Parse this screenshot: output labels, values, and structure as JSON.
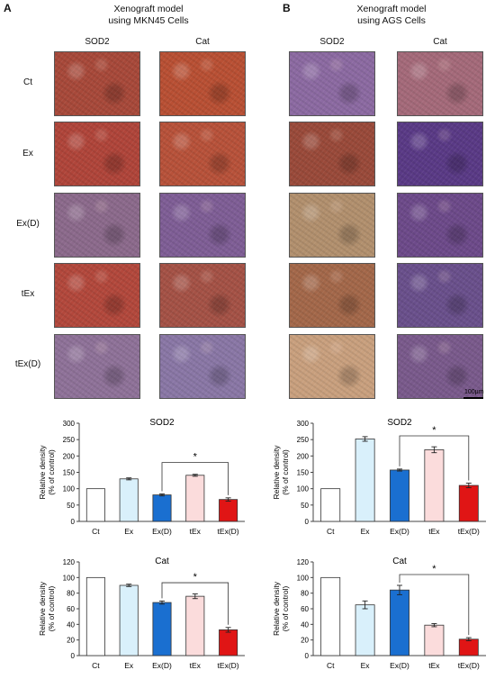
{
  "panels": [
    {
      "letter": "A",
      "title_line1": "Xenograft model",
      "title_line2": "using MKN45 Cells",
      "stain_headers": [
        "SOD2",
        "Cat"
      ],
      "row_labels": [
        "Ct",
        "Ex",
        "Ex(D)",
        "tEx",
        "tEx(D)"
      ],
      "tile_colors": [
        [
          "#a8493a",
          "#b95034"
        ],
        [
          "#b0453a",
          "#b8523a"
        ],
        [
          "#8c6a8c",
          "#7f5e96"
        ],
        [
          "#b3483c",
          "#a55246"
        ],
        [
          "#8f7299",
          "#8a77a6"
        ]
      ]
    },
    {
      "letter": "B",
      "title_line1": "Xenograft model",
      "title_line2": "using AGS Cells",
      "stain_headers": [
        "SOD2",
        "Cat"
      ],
      "row_labels": [],
      "tile_colors": [
        [
          "#8c6aa2",
          "#a56a7a"
        ],
        [
          "#9a4a3a",
          "#5a3a86"
        ],
        [
          "#b2906e",
          "#6d4a8a"
        ],
        [
          "#a4684a",
          "#6a508c"
        ],
        [
          "#c9a07e",
          "#7a5a8c"
        ]
      ],
      "scale_label": "100μm"
    }
  ],
  "chart_data": [
    {
      "type": "bar",
      "title": "SOD2",
      "categories": [
        "Ct",
        "Ex",
        "Ex(D)",
        "tEx",
        "tEx(D)"
      ],
      "values": [
        100,
        130,
        81,
        141,
        67
      ],
      "errors": [
        0,
        3,
        3,
        3,
        5
      ],
      "ylabel": "Relative density\n(% of control)",
      "ylim": [
        0,
        300
      ],
      "yticks": [
        0,
        50,
        100,
        150,
        200,
        250,
        300
      ],
      "bar_colors": [
        "#ffffff",
        "#d9f0fb",
        "#1a6fd0",
        "#fbdcdc",
        "#e01515"
      ],
      "significance": "*",
      "sig_from": "Ex(D)",
      "sig_to": "tEx(D)"
    },
    {
      "type": "bar",
      "title": "SOD2",
      "categories": [
        "Ct",
        "Ex",
        "Ex(D)",
        "tEx",
        "tEx(D)"
      ],
      "values": [
        100,
        252,
        157,
        219,
        110
      ],
      "errors": [
        0,
        7,
        3,
        9,
        7
      ],
      "ylabel": "Relative density\n(% of control)",
      "ylim": [
        0,
        300
      ],
      "yticks": [
        0,
        50,
        100,
        150,
        200,
        250,
        300
      ],
      "bar_colors": [
        "#ffffff",
        "#d9f0fb",
        "#1a6fd0",
        "#fbdcdc",
        "#e01515"
      ],
      "significance": "*",
      "sig_from": "Ex(D)",
      "sig_to": "tEx(D)"
    },
    {
      "type": "bar",
      "title": "Cat",
      "categories": [
        "Ct",
        "Ex",
        "Ex(D)",
        "tEx",
        "tEx(D)"
      ],
      "values": [
        100,
        90,
        68,
        76,
        33
      ],
      "errors": [
        0,
        1.5,
        2,
        3,
        3
      ],
      "ylabel": "Relative density\n(% of control)",
      "ylim": [
        0,
        120
      ],
      "yticks": [
        0,
        20,
        40,
        60,
        80,
        100,
        120
      ],
      "bar_colors": [
        "#ffffff",
        "#d9f0fb",
        "#1a6fd0",
        "#fbdcdc",
        "#e01515"
      ],
      "significance": "*",
      "sig_from": "Ex(D)",
      "sig_to": "tEx(D)"
    },
    {
      "type": "bar",
      "title": "Cat",
      "categories": [
        "Ct",
        "Ex",
        "Ex(D)",
        "tEx",
        "tEx(D)"
      ],
      "values": [
        100,
        65,
        84,
        39,
        21
      ],
      "errors": [
        0,
        5,
        6,
        2,
        2
      ],
      "ylabel": "Relative density\n(% of control)",
      "ylim": [
        0,
        120
      ],
      "yticks": [
        0,
        20,
        40,
        60,
        80,
        100,
        120
      ],
      "bar_colors": [
        "#ffffff",
        "#d9f0fb",
        "#1a6fd0",
        "#fbdcdc",
        "#e01515"
      ],
      "significance": "*",
      "sig_from": "Ex(D)",
      "sig_to": "tEx(D)"
    }
  ]
}
